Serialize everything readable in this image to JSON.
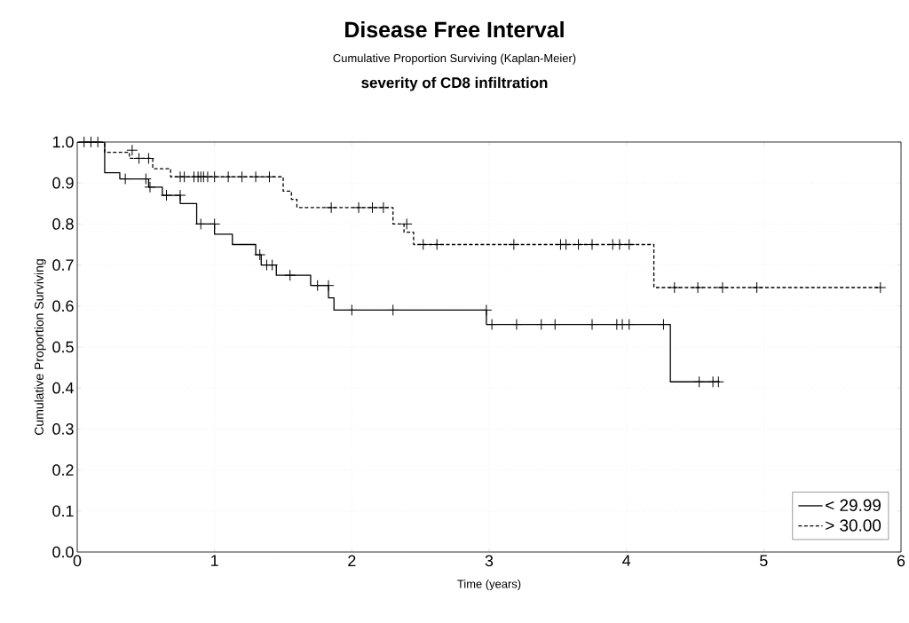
{
  "chart_data": {
    "type": "step",
    "title": "Disease Free Interval",
    "subtitle": "Cumulative Proportion Surviving (Kaplan-Meier)",
    "annotations": [
      "severity of CD8 infiltration"
    ],
    "xlabel": "Time (years)",
    "ylabel": "Cumulative Proportion Surviving",
    "xlim": [
      0,
      6
    ],
    "xticks": [
      0,
      1,
      2,
      3,
      4,
      5,
      6
    ],
    "ylim": [
      0,
      1
    ],
    "yticks": [
      {
        "value": 0,
        "label": "0.0"
      },
      0.1,
      0.2,
      0.3,
      0.4,
      0.5,
      0.6,
      0.7,
      0.8,
      0.9,
      {
        "value": 1,
        "label": "1.0"
      }
    ],
    "grid": true,
    "legend": "bottom right",
    "series": [
      {
        "name": "< 29.99",
        "type": "step",
        "color": "#000000",
        "line_style": "solid",
        "marker": "none",
        "x": [
          0,
          0.2,
          0.31,
          0.52,
          0.62,
          0.75,
          0.87,
          1.0,
          1.13,
          1.3,
          1.34,
          1.45,
          1.7,
          1.83,
          1.87,
          2.98,
          4.32,
          4.68
        ],
        "values": [
          1.0,
          0.925,
          0.91,
          0.89,
          0.87,
          0.85,
          0.8,
          0.775,
          0.75,
          0.725,
          0.7,
          0.675,
          0.65,
          0.62,
          0.59,
          0.555,
          0.415,
          0.415
        ]
      },
      {
        "name": "> 30.00",
        "type": "step",
        "color": "#000000",
        "line_style": "dashed",
        "marker": "none",
        "x": [
          0,
          0.2,
          0.38,
          0.55,
          0.68,
          1.5,
          1.56,
          1.6,
          2.3,
          2.38,
          2.45,
          4.2,
          5.85
        ],
        "values": [
          1.0,
          0.975,
          0.96,
          0.935,
          0.915,
          0.88,
          0.86,
          0.84,
          0.8,
          0.78,
          0.75,
          0.645,
          0.645
        ]
      },
      {
        "type": "scatter",
        "color": "#000000",
        "marker": "cross",
        "x": [
          0.05,
          0.1,
          0.15,
          0.35,
          0.5,
          0.53,
          0.65,
          0.75,
          0.9,
          1.0,
          1.33,
          1.38,
          1.42,
          1.55,
          1.75,
          1.83,
          2.0,
          2.3,
          2.98,
          3.02,
          3.2,
          3.38,
          3.48,
          3.75,
          3.93,
          3.97,
          4.02,
          4.27,
          4.53,
          4.63,
          4.67
        ],
        "values": [
          1.0,
          1.0,
          1.0,
          0.91,
          0.91,
          0.89,
          0.87,
          0.87,
          0.8,
          0.8,
          0.725,
          0.7,
          0.7,
          0.675,
          0.65,
          0.65,
          0.59,
          0.59,
          0.59,
          0.555,
          0.555,
          0.555,
          0.555,
          0.555,
          0.555,
          0.555,
          0.555,
          0.555,
          0.415,
          0.415,
          0.415
        ]
      },
      {
        "type": "scatter",
        "color": "#000000",
        "marker": "cross",
        "x": [
          0.4,
          0.45,
          0.52,
          0.75,
          0.78,
          0.85,
          0.88,
          0.9,
          0.92,
          0.95,
          1.0,
          1.1,
          1.2,
          1.3,
          1.4,
          1.85,
          2.05,
          2.15,
          2.23,
          2.4,
          2.52,
          2.62,
          3.18,
          3.52,
          3.56,
          3.65,
          3.75,
          3.9,
          3.95,
          4.02,
          4.35,
          4.52,
          4.7,
          4.95,
          5.85
        ],
        "values": [
          0.98,
          0.96,
          0.96,
          0.915,
          0.915,
          0.915,
          0.915,
          0.915,
          0.915,
          0.915,
          0.915,
          0.915,
          0.915,
          0.915,
          0.915,
          0.84,
          0.84,
          0.84,
          0.84,
          0.8,
          0.75,
          0.75,
          0.75,
          0.75,
          0.75,
          0.75,
          0.75,
          0.75,
          0.75,
          0.75,
          0.645,
          0.645,
          0.645,
          0.645,
          0.645
        ]
      }
    ]
  }
}
